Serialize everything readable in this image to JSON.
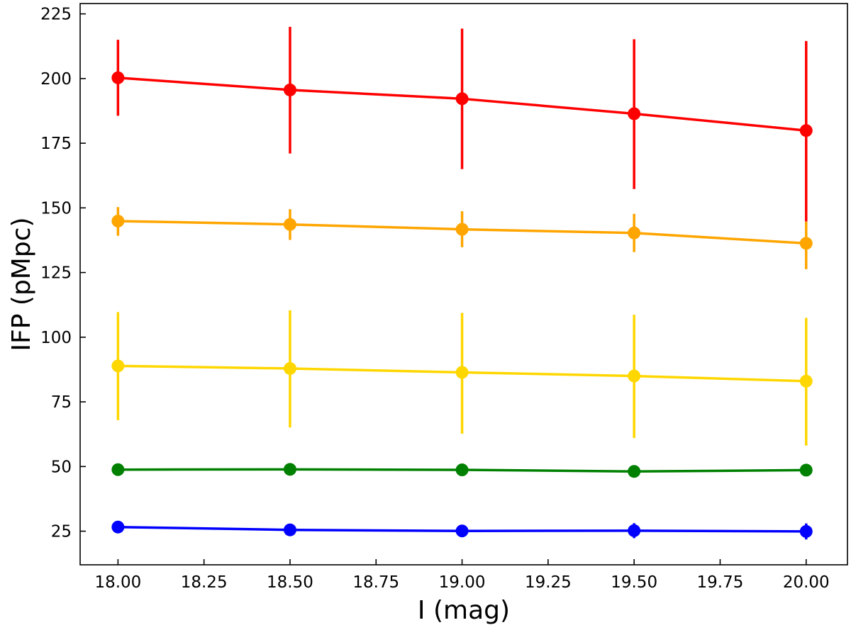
{
  "chart_data": {
    "type": "line",
    "title": "",
    "xlabel": "I (mag)",
    "ylabel": "IFP (pMpc)",
    "x": [
      18.0,
      18.5,
      19.0,
      19.5,
      20.0
    ],
    "xlim": [
      17.89,
      20.12
    ],
    "ylim": [
      12,
      229
    ],
    "xticks": [
      18.0,
      18.25,
      18.5,
      18.75,
      19.0,
      19.25,
      19.5,
      19.75,
      20.0
    ],
    "xtick_labels": [
      "18.00",
      "18.25",
      "18.50",
      "18.75",
      "19.00",
      "19.25",
      "19.50",
      "19.75",
      "20.00"
    ],
    "yticks": [
      25,
      50,
      75,
      100,
      125,
      150,
      175,
      200,
      225
    ],
    "ytick_labels": [
      "25",
      "50",
      "75",
      "100",
      "125",
      "150",
      "175",
      "200",
      "225"
    ],
    "grid": false,
    "legend": false,
    "series": [
      {
        "color": "#ff0000",
        "values": [
          200.3,
          195.6,
          192.2,
          186.4,
          179.9
        ],
        "err_low": [
          185.6,
          171.0,
          165.0,
          157.3,
          144.7
        ],
        "err_high": [
          215.0,
          220.0,
          219.3,
          215.2,
          214.5
        ]
      },
      {
        "color": "#ffa500",
        "values": [
          144.9,
          143.6,
          141.7,
          140.3,
          136.3
        ],
        "err_low": [
          139.2,
          137.6,
          134.8,
          132.9,
          126.3
        ],
        "err_high": [
          150.3,
          149.5,
          148.7,
          147.7,
          144.6
        ]
      },
      {
        "color": "#ffd700",
        "values": [
          88.9,
          87.9,
          86.4,
          85.0,
          83.0
        ],
        "err_low": [
          67.9,
          65.1,
          62.7,
          61.0,
          58.1
        ],
        "err_high": [
          109.7,
          110.4,
          109.4,
          108.7,
          107.5
        ]
      },
      {
        "color": "#008000",
        "values": [
          48.8,
          48.9,
          48.7,
          48.1,
          48.6
        ],
        "err_low": [
          48.2,
          48.3,
          48.0,
          47.4,
          47.8
        ],
        "err_high": [
          49.4,
          49.5,
          49.4,
          48.8,
          49.4
        ]
      },
      {
        "color": "#0000ff",
        "values": [
          26.6,
          25.5,
          25.1,
          25.2,
          24.9
        ],
        "err_low": [
          25.3,
          24.4,
          23.4,
          22.3,
          21.8
        ],
        "err_high": [
          27.9,
          26.6,
          26.8,
          28.1,
          28.0
        ]
      }
    ]
  }
}
